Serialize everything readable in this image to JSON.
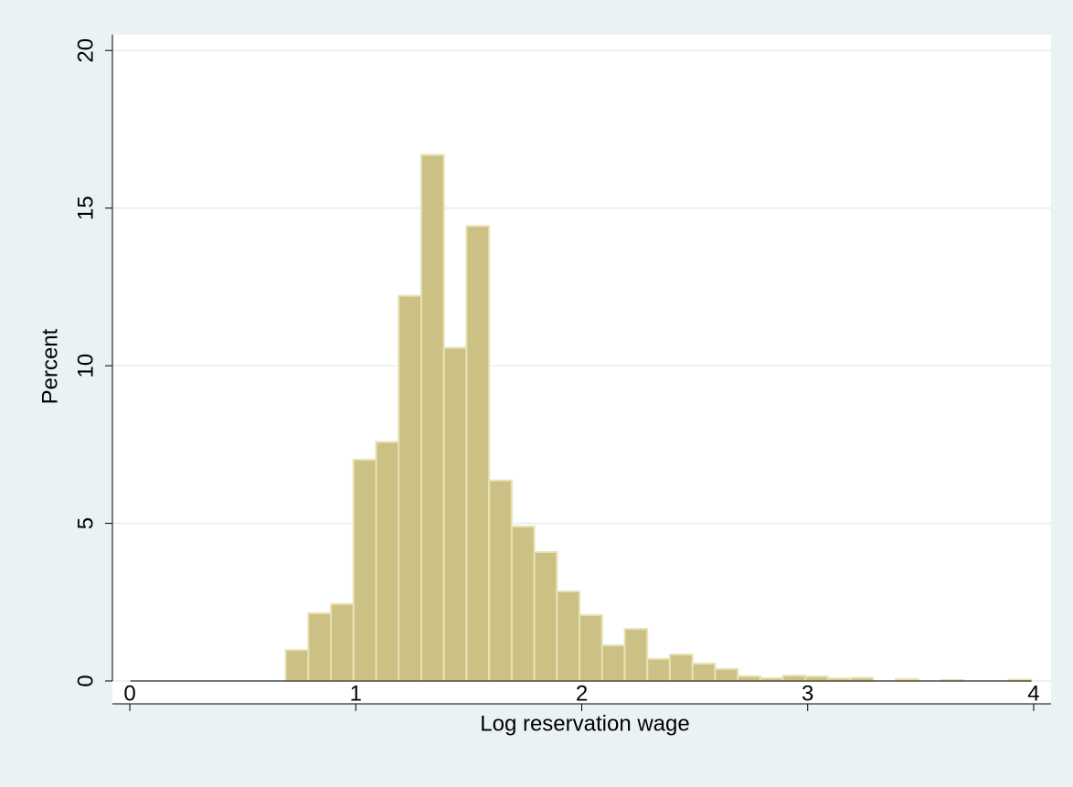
{
  "chart_data": {
    "type": "histogram",
    "x_label": "Log reservation wage",
    "y_label": "Percent",
    "bins": [
      0.69,
      0.79,
      0.89,
      0.99,
      1.09,
      1.19,
      1.29,
      1.39,
      1.49,
      1.59,
      1.69,
      1.79,
      1.89,
      1.99,
      2.09,
      2.19,
      2.29,
      2.39,
      2.49,
      2.59,
      2.69,
      2.79,
      2.89,
      2.99,
      3.09,
      3.19,
      3.29,
      3.39,
      3.49,
      3.59,
      3.69,
      3.79,
      3.89,
      3.99
    ],
    "counts": [
      0.98,
      2.15,
      2.44,
      7.02,
      7.58,
      12.22,
      16.69,
      10.57,
      14.43,
      6.36,
      4.9,
      4.09,
      2.84,
      2.09,
      1.13,
      1.65,
      0.7,
      0.84,
      0.55,
      0.38,
      0.15,
      0.09,
      0.17,
      0.14,
      0.08,
      0.1,
      0,
      0.06,
      0,
      0.03,
      0,
      0,
      0.04
    ],
    "color": "#ccc185",
    "edge_color": "#e8e1b4",
    "xlim": [
      -0.077,
      4.077
    ],
    "ylim": [
      0,
      20.5
    ],
    "xticks": [
      0,
      1,
      2,
      3,
      4
    ],
    "yticks": [
      0,
      5,
      10,
      15,
      20
    ],
    "grid": true
  }
}
